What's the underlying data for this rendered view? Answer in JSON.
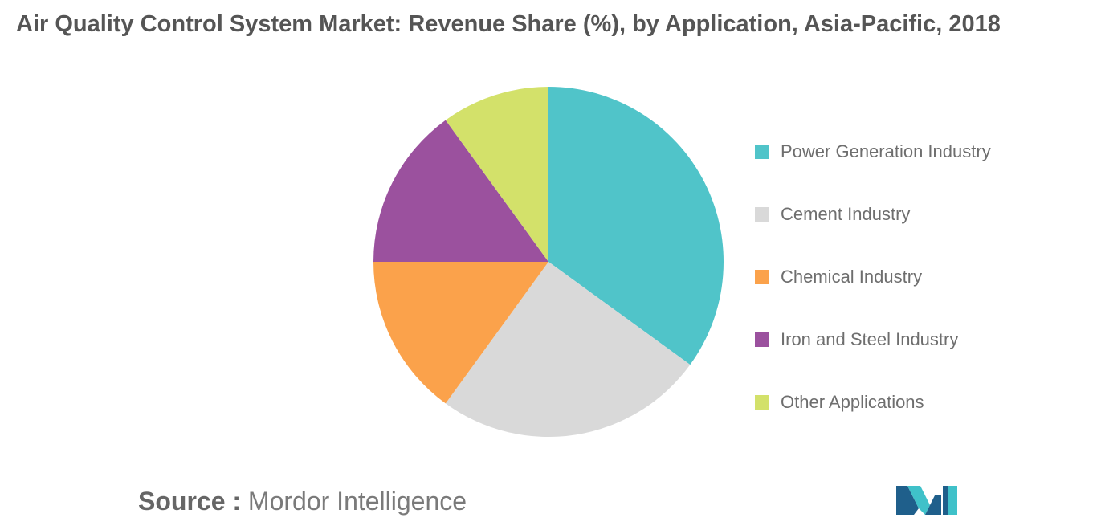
{
  "title": "Air Quality Control System Market: Revenue Share (%), by Application, Asia-Pacific, 2018",
  "source": {
    "label": "Source :",
    "value": "Mordor Intelligence"
  },
  "logo": {
    "icon": "mordor-intelligence-logo",
    "colors": [
      "#1f5f8b",
      "#3fc1c9"
    ]
  },
  "chart_data": {
    "type": "pie",
    "title": "Air Quality Control System Market: Revenue Share (%), by Application, Asia-Pacific, 2018",
    "labels": [
      "Power Generation Industry",
      "Cement Industry",
      "Chemical Industry",
      "Iron and Steel Industry",
      "Other Applications"
    ],
    "values": [
      35,
      25,
      15,
      15,
      10
    ],
    "colors": [
      "#50c4c9",
      "#d9d9d9",
      "#fba24b",
      "#9b519e",
      "#d3e16a"
    ],
    "start_angle": "12 o'clock",
    "direction": "clockwise",
    "legend": "right",
    "data_labels": false
  }
}
